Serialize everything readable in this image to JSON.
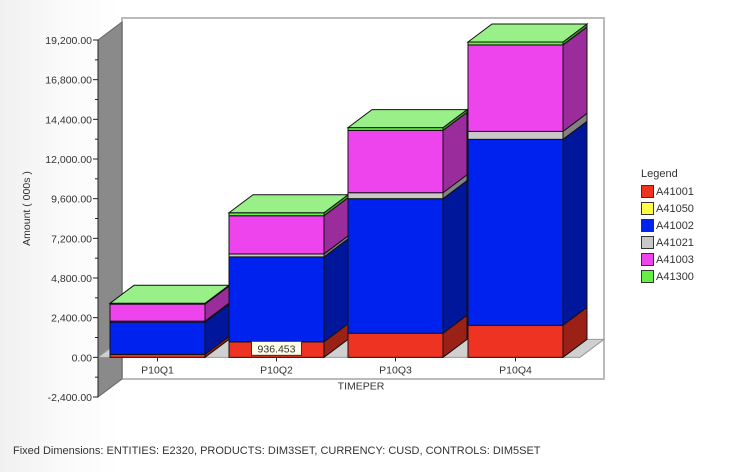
{
  "chart_data": {
    "type": "bar",
    "stacked": true,
    "three_d": true,
    "title": "",
    "xlabel": "TIMEPER",
    "ylabel": "Amount ( 000s )",
    "ylim": [
      -2400,
      19200
    ],
    "yticks": [
      "19,200.00",
      "16,800.00",
      "14,400.00",
      "12,000.00",
      "9,600.00",
      "7,200.00",
      "4,800.00",
      "2,400.00",
      "0.00",
      "-2,400.00"
    ],
    "ytick_values": [
      19200,
      16800,
      14400,
      12000,
      9600,
      7200,
      4800,
      2400,
      0,
      -2400
    ],
    "categories": [
      "P10Q1",
      "P10Q2",
      "P10Q3",
      "P10Q4"
    ],
    "series": [
      {
        "name": "A41001",
        "color": "#ee3322",
        "values": [
          180,
          936.453,
          1460,
          1940
        ]
      },
      {
        "name": "A41050",
        "color": "#ffff44",
        "values": [
          0,
          0,
          0,
          0
        ]
      },
      {
        "name": "A41002",
        "color": "#0022ee",
        "values": [
          1950,
          5140,
          8140,
          11250
        ]
      },
      {
        "name": "A41021",
        "color": "#c8c8c8",
        "values": [
          60,
          180,
          360,
          480
        ]
      },
      {
        "name": "A41003",
        "color": "#ee44ee",
        "values": [
          1030,
          2310,
          3770,
          5230
        ]
      },
      {
        "name": "A41300",
        "color": "#66ee44",
        "values": [
          50,
          180,
          170,
          180
        ]
      }
    ],
    "data_label": {
      "category": "P10Q2",
      "series": "A41001",
      "text": "936.453"
    },
    "legend": {
      "title": "Legend",
      "placement": "right"
    },
    "grid": false
  },
  "footer": "Fixed Dimensions: ENTITIES: E2320, PRODUCTS: DIM3SET, CURRENCY: CUSD, CONTROLS: DIM5SET"
}
